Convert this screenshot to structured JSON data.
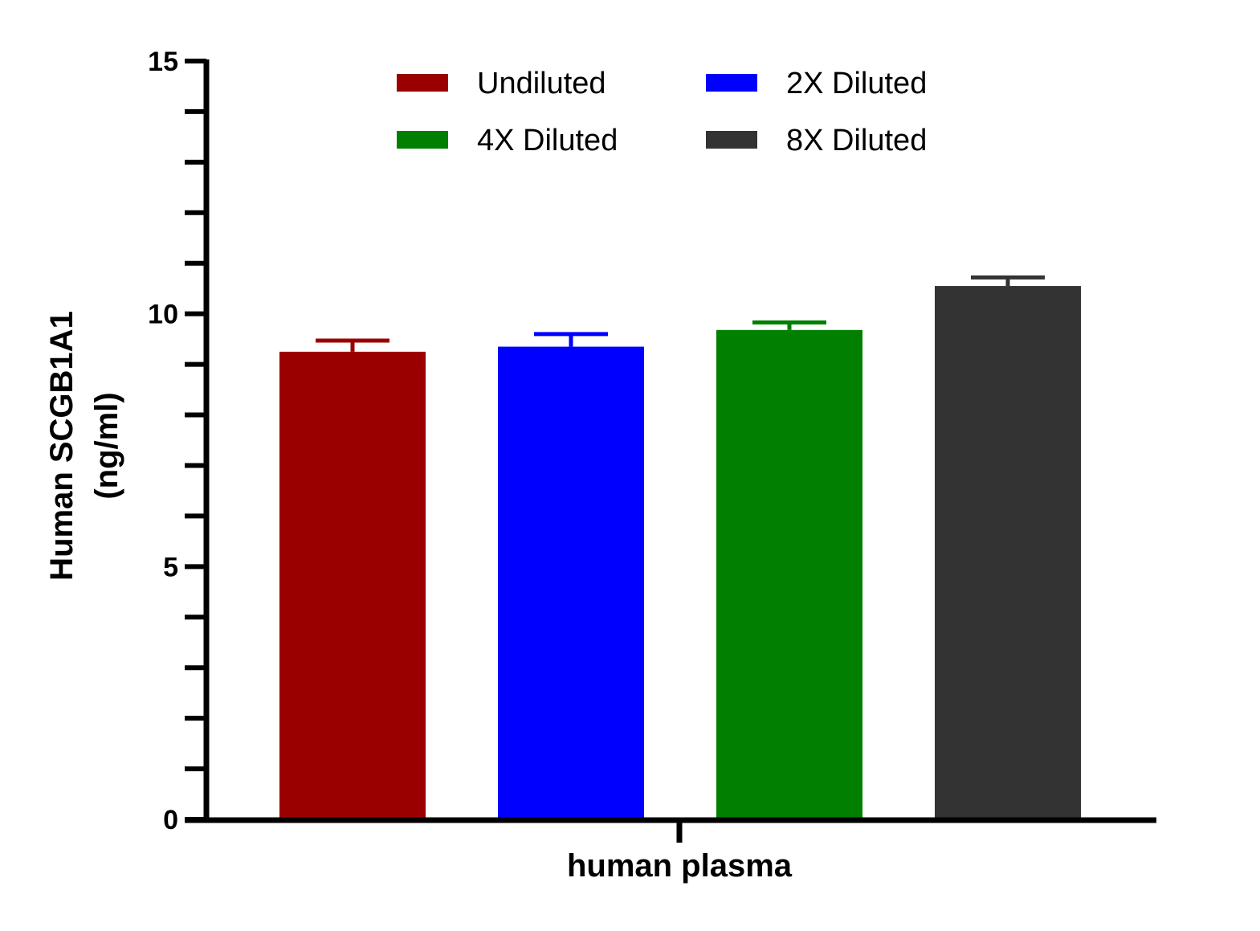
{
  "chart_data": {
    "type": "bar",
    "categories": [
      "human plasma"
    ],
    "series": [
      {
        "name": "Undiluted",
        "values": [
          9.25
        ],
        "error": [
          0.22
        ],
        "color": "#9b0000"
      },
      {
        "name": "2X Diluted",
        "values": [
          9.35
        ],
        "error": [
          0.25
        ],
        "color": "#0000ff"
      },
      {
        "name": "4X Diluted",
        "values": [
          9.68
        ],
        "error": [
          0.15
        ],
        "color": "#007f00"
      },
      {
        "name": "8X Diluted",
        "values": [
          10.55
        ],
        "error": [
          0.17
        ],
        "color": "#333333"
      }
    ],
    "xlabel": "human plasma",
    "ylabel": "Human SCGB1A1 (ng/ml)",
    "ylabel_lines": [
      "Human SCGB1A1",
      "(ng/ml)"
    ],
    "ylim": [
      0,
      15
    ],
    "yticks": [
      0,
      5,
      10,
      15
    ],
    "ytick_labels": [
      "0",
      "5",
      "10",
      "15"
    ],
    "minor_tick_step": 1,
    "legend_position": "top",
    "grid": false
  }
}
